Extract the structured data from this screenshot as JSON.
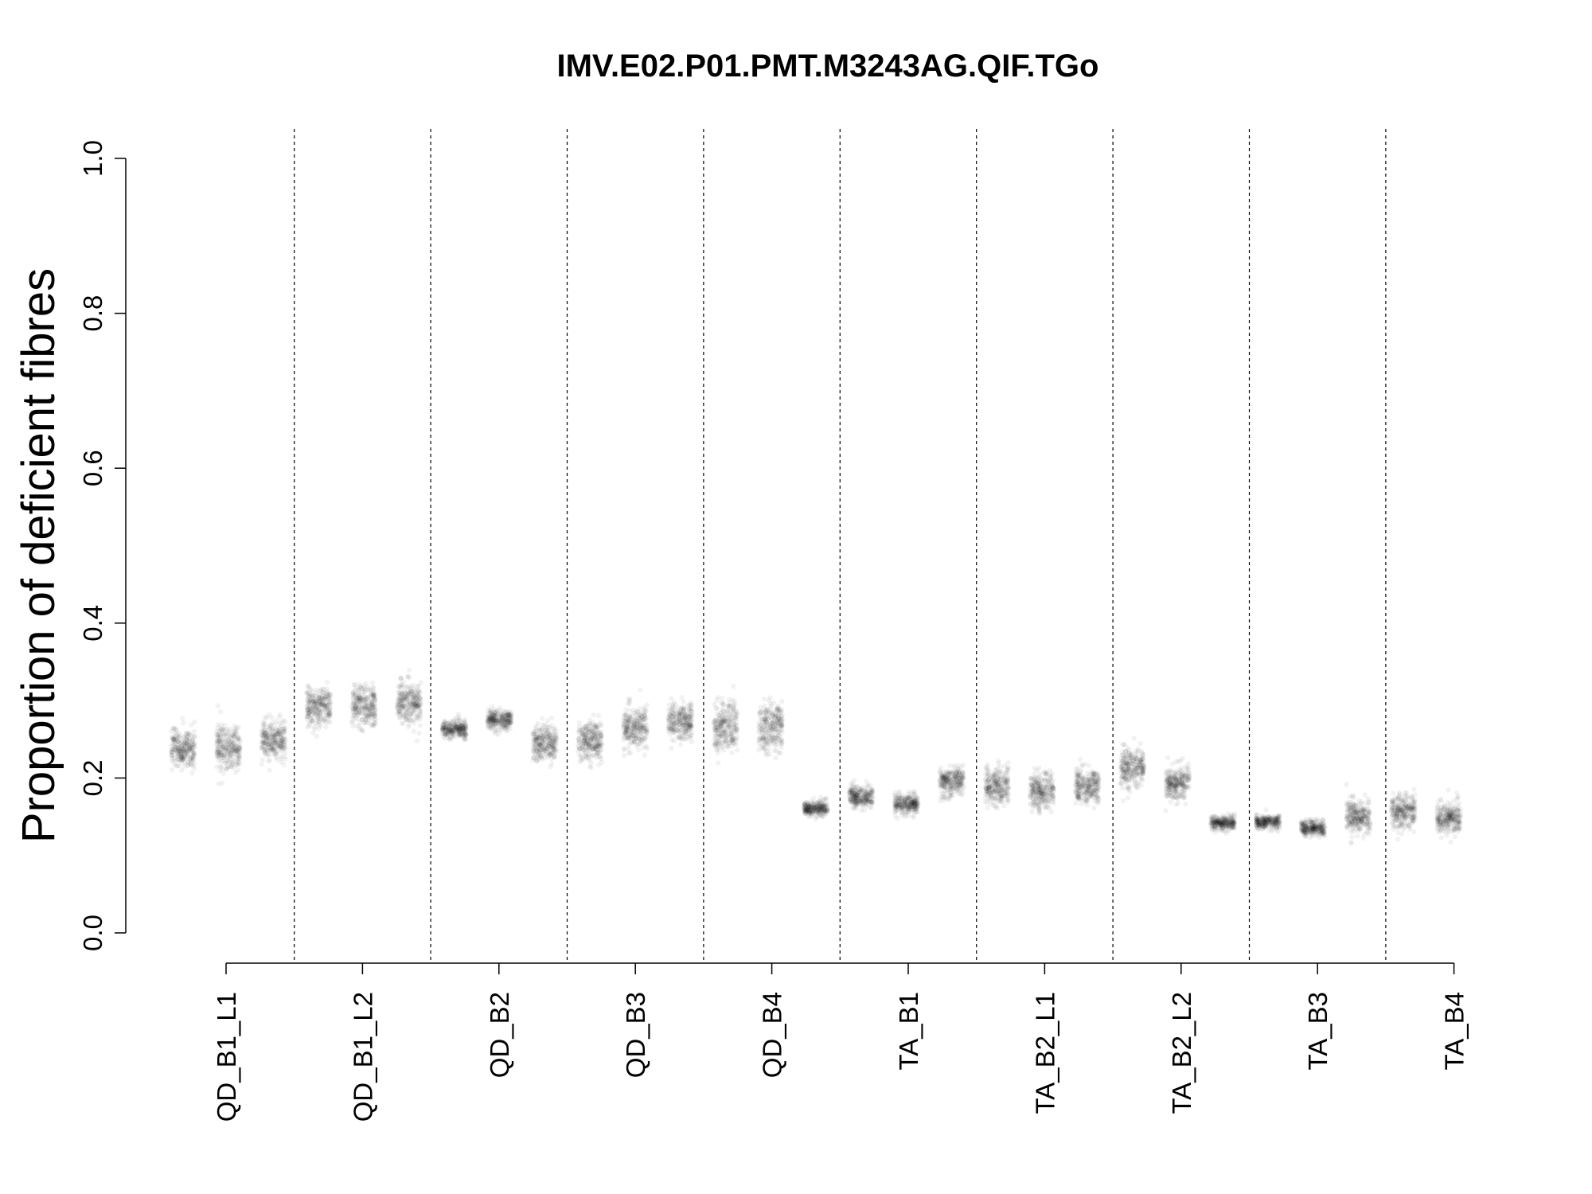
{
  "chart_data": {
    "type": "scatter",
    "title": "IMV.E02.P01.PMT.M3243AG.QIF.TGo",
    "xlabel": "",
    "ylabel": "Proportion of deficient fibres",
    "ylim": [
      0,
      1
    ],
    "yticks": [
      "0.0",
      "0.2",
      "0.4",
      "0.6",
      "0.8",
      "1.0"
    ],
    "categories": [
      "QD_B1_L1",
      "QD_B1_L2",
      "QD_B2",
      "QD_B3",
      "QD_B4",
      "TA_B1",
      "TA_B2_L1",
      "TA_B2_L2",
      "TA_B3",
      "TA_B4"
    ],
    "grid": false,
    "legend": "none",
    "point_color": "#000000",
    "series_note": "posterior samples per section; columns per category",
    "columns": [
      {
        "category": "QD_B1_L1",
        "mean": 0.238,
        "spread": 0.026
      },
      {
        "category": "QD_B1_L1",
        "mean": 0.24,
        "spread": 0.028
      },
      {
        "category": "QD_B1_L1",
        "mean": 0.247,
        "spread": 0.026
      },
      {
        "category": "QD_B1_L2",
        "mean": 0.292,
        "spread": 0.027
      },
      {
        "category": "QD_B1_L2",
        "mean": 0.293,
        "spread": 0.027
      },
      {
        "category": "QD_B1_L2",
        "mean": 0.297,
        "spread": 0.026
      },
      {
        "category": "QD_B2",
        "mean": 0.264,
        "spread": 0.011
      },
      {
        "category": "QD_B2",
        "mean": 0.275,
        "spread": 0.012
      },
      {
        "category": "QD_B2",
        "mean": 0.245,
        "spread": 0.023
      },
      {
        "category": "QD_B3",
        "mean": 0.248,
        "spread": 0.026
      },
      {
        "category": "QD_B3",
        "mean": 0.264,
        "spread": 0.026
      },
      {
        "category": "QD_B3",
        "mean": 0.274,
        "spread": 0.024
      },
      {
        "category": "QD_B4",
        "mean": 0.267,
        "spread": 0.031
      },
      {
        "category": "QD_B4",
        "mean": 0.266,
        "spread": 0.031
      },
      {
        "category": "TA_B1",
        "mean": 0.161,
        "spread": 0.01
      },
      {
        "category": "TA_B1",
        "mean": 0.176,
        "spread": 0.013
      },
      {
        "category": "TA_B1",
        "mean": 0.166,
        "spread": 0.012
      },
      {
        "category": "TA_B1",
        "mean": 0.195,
        "spread": 0.019
      },
      {
        "category": "TA_B2_L1",
        "mean": 0.19,
        "spread": 0.024
      },
      {
        "category": "TA_B2_L1",
        "mean": 0.183,
        "spread": 0.025
      },
      {
        "category": "TA_B2_L1",
        "mean": 0.189,
        "spread": 0.023
      },
      {
        "category": "TA_B2_L2",
        "mean": 0.212,
        "spread": 0.025
      },
      {
        "category": "TA_B2_L2",
        "mean": 0.195,
        "spread": 0.022
      },
      {
        "category": "TA_B2_L2",
        "mean": 0.142,
        "spread": 0.009
      },
      {
        "category": "TA_B3",
        "mean": 0.143,
        "spread": 0.009
      },
      {
        "category": "TA_B3",
        "mean": 0.135,
        "spread": 0.01
      },
      {
        "category": "TA_B3",
        "mean": 0.15,
        "spread": 0.022
      },
      {
        "category": "TA_B4",
        "mean": 0.157,
        "spread": 0.023
      },
      {
        "category": "TA_B4",
        "mean": 0.148,
        "spread": 0.022
      }
    ]
  }
}
